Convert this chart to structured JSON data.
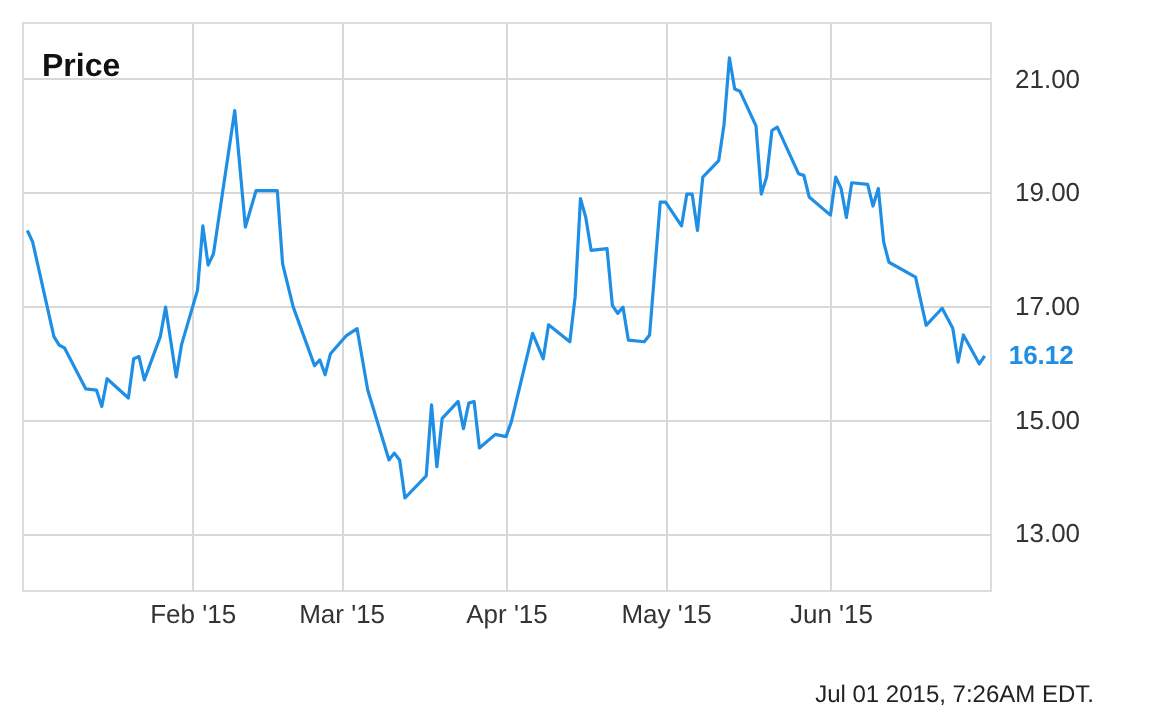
{
  "chart_data": {
    "type": "line",
    "title": "Price",
    "x": [
      "2015-01-01",
      "2015-01-02",
      "2015-01-06",
      "2015-01-07",
      "2015-01-08",
      "2015-01-12",
      "2015-01-14",
      "2015-01-15",
      "2015-01-16",
      "2015-01-20",
      "2015-01-21",
      "2015-01-22",
      "2015-01-23",
      "2015-01-26",
      "2015-01-27",
      "2015-01-29",
      "2015-01-30",
      "2015-02-02",
      "2015-02-03",
      "2015-02-04",
      "2015-02-05",
      "2015-02-09",
      "2015-02-11",
      "2015-02-13",
      "2015-02-17",
      "2015-02-18",
      "2015-02-20",
      "2015-02-24",
      "2015-02-25",
      "2015-02-26",
      "2015-02-27",
      "2015-03-02",
      "2015-03-04",
      "2015-03-06",
      "2015-03-10",
      "2015-03-11",
      "2015-03-12",
      "2015-03-13",
      "2015-03-17",
      "2015-03-18",
      "2015-03-19",
      "2015-03-20",
      "2015-03-23",
      "2015-03-24",
      "2015-03-25",
      "2015-03-26",
      "2015-03-27",
      "2015-03-30",
      "2015-04-01",
      "2015-04-02",
      "2015-04-06",
      "2015-04-08",
      "2015-04-09",
      "2015-04-13",
      "2015-04-14",
      "2015-04-15",
      "2015-04-16",
      "2015-04-17",
      "2015-04-20",
      "2015-04-21",
      "2015-04-22",
      "2015-04-23",
      "2015-04-24",
      "2015-04-27",
      "2015-04-28",
      "2015-04-30",
      "2015-05-01",
      "2015-05-04",
      "2015-05-05",
      "2015-05-06",
      "2015-05-07",
      "2015-05-08",
      "2015-05-11",
      "2015-05-12",
      "2015-05-13",
      "2015-05-14",
      "2015-05-15",
      "2015-05-18",
      "2015-05-19",
      "2015-05-20",
      "2015-05-21",
      "2015-05-22",
      "2015-05-26",
      "2015-05-27",
      "2015-05-28",
      "2015-06-01",
      "2015-06-02",
      "2015-06-03",
      "2015-06-04",
      "2015-06-05",
      "2015-06-08",
      "2015-06-09",
      "2015-06-10",
      "2015-06-11",
      "2015-06-12",
      "2015-06-17",
      "2015-06-19",
      "2015-06-22",
      "2015-06-24",
      "2015-06-25",
      "2015-06-26",
      "2015-06-29",
      "2015-06-30"
    ],
    "series": [
      {
        "color": "#1f8fe6",
        "values": [
          18.33,
          18.13,
          16.46,
          16.31,
          16.26,
          15.54,
          15.52,
          15.23,
          15.72,
          15.38,
          16.07,
          16.11,
          15.7,
          16.46,
          16.98,
          15.75,
          16.32,
          17.28,
          18.41,
          17.72,
          17.92,
          20.44,
          18.39,
          19.03,
          19.03,
          17.74,
          16.98,
          15.95,
          16.05,
          15.79,
          16.16,
          16.48,
          16.6,
          15.52,
          14.29,
          14.41,
          14.29,
          13.62,
          14.01,
          15.26,
          14.17,
          15.02,
          15.32,
          14.84,
          15.29,
          15.32,
          14.5,
          14.74,
          14.7,
          14.96,
          16.52,
          16.07,
          16.67,
          16.37,
          17.16,
          18.89,
          18.56,
          17.98,
          18.01,
          17.01,
          16.87,
          16.98,
          16.4,
          16.37,
          16.49,
          18.83,
          18.83,
          18.41,
          18.97,
          18.97,
          18.33,
          19.27,
          19.56,
          20.2,
          21.37,
          20.82,
          20.78,
          20.17,
          18.97,
          19.27,
          20.09,
          20.15,
          19.33,
          19.3,
          18.92,
          18.6,
          19.27,
          19.07,
          18.56,
          19.17,
          19.14,
          18.76,
          19.07,
          18.13,
          17.77,
          17.51,
          16.66,
          16.96,
          16.61,
          16.01,
          16.49,
          15.98,
          16.12
        ]
      }
    ],
    "xlim": [
      "2014-12-31",
      "2015-07-01"
    ],
    "xticks": [
      {
        "value": "2015-02-01",
        "label": "Feb '15"
      },
      {
        "value": "2015-03-01",
        "label": "Mar '15"
      },
      {
        "value": "2015-04-01",
        "label": "Apr '15"
      },
      {
        "value": "2015-05-01",
        "label": "May '15"
      },
      {
        "value": "2015-06-01",
        "label": "Jun '15"
      }
    ],
    "ylim": [
      12,
      22
    ],
    "yticks": [
      {
        "value": 13,
        "label": "13.00"
      },
      {
        "value": 15,
        "label": "15.00"
      },
      {
        "value": 17,
        "label": "17.00"
      },
      {
        "value": 19,
        "label": "19.00"
      },
      {
        "value": 21,
        "label": "21.00"
      }
    ],
    "grid": true,
    "marker": "none",
    "line_style": "solid",
    "annotations": [
      {
        "text": "16.12",
        "x": "2015-06-30",
        "y": 16.12
      },
      "Jul 01 2015, 7:26AM EDT."
    ]
  }
}
